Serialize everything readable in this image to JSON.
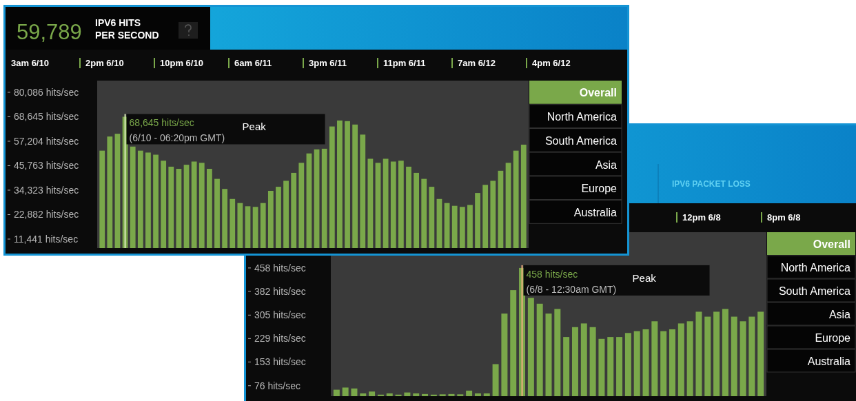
{
  "chart_data": [
    {
      "type": "bar",
      "title": "IPV6 HITS PER SECOND",
      "categories": [
        null,
        null,
        null,
        null,
        null,
        null,
        null,
        null,
        null,
        null,
        null,
        null,
        null,
        null,
        null,
        null,
        null,
        null,
        null,
        null,
        null,
        null,
        null,
        null,
        null,
        null,
        null,
        null,
        null,
        null,
        null,
        null,
        null,
        null,
        null,
        null,
        null,
        null,
        null,
        null,
        null,
        null,
        null,
        null,
        null,
        null,
        null,
        null,
        null,
        null,
        null,
        null,
        null,
        null,
        null,
        null
      ],
      "values": [
        52800,
        59400,
        60700,
        68645,
        54700,
        52800,
        51900,
        50900,
        48100,
        45300,
        44300,
        46200,
        47700,
        47100,
        44300,
        39600,
        34900,
        30200,
        28300,
        26800,
        26500,
        28300,
        34000,
        35900,
        38700,
        42400,
        47100,
        51500,
        53400,
        53700,
        64100,
        66900,
        66600,
        65000,
        60300,
        49000,
        47100,
        49000,
        47700,
        48100,
        45300,
        42400,
        39600,
        35900,
        30200,
        28300,
        27000,
        26500,
        27400,
        33000,
        36800,
        38700,
        43400,
        47100,
        52800,
        55600
      ],
      "color": "#7aa84a",
      "ylim": [
        7250,
        85550
      ],
      "yticks": [
        {
          "value": 80086,
          "label": "80,086 hits/sec"
        },
        {
          "value": 68645,
          "label": "68,645 hits/sec"
        },
        {
          "value": 57204,
          "label": "57,204 hits/sec"
        },
        {
          "value": 45763,
          "label": "45,763 hits/sec"
        },
        {
          "value": 34323,
          "label": "34,323 hits/sec"
        },
        {
          "value": 22882,
          "label": "22,882 hits/sec"
        },
        {
          "value": 11441,
          "label": "11,441 hits/sec"
        }
      ],
      "annotations": [
        "59,789",
        "3am 6/10",
        "2pm 6/10",
        "10pm 6/10",
        "6am 6/11",
        "3pm 6/11",
        "11pm 6/11",
        "7am 6/12",
        "4pm 6/12",
        "68,645 hits/sec",
        "(6/10 - 06:20pm GMT)",
        "Peak",
        "Overall",
        "North America",
        "South America",
        "Asia",
        "Europe",
        "Australia"
      ]
    },
    {
      "type": "bar",
      "categories": [
        null,
        null,
        null,
        null,
        null,
        null,
        null,
        null,
        null,
        null,
        null,
        null,
        null,
        null,
        null,
        null,
        null,
        null,
        null,
        null,
        null,
        null,
        null,
        null,
        null,
        null,
        null,
        null,
        null,
        null,
        null,
        null,
        null,
        null,
        null,
        null,
        null,
        null,
        null,
        null,
        null,
        null,
        null,
        null,
        null,
        null,
        null,
        null,
        null
      ],
      "values": [
        63,
        70,
        67,
        51,
        57,
        47,
        51,
        47,
        54,
        51,
        49,
        47,
        48,
        49,
        48,
        60,
        51,
        51,
        146,
        310,
        386,
        458,
        361,
        342,
        310,
        325,
        234,
        266,
        278,
        266,
        228,
        234,
        234,
        247,
        253,
        259,
        285,
        253,
        259,
        278,
        285,
        316,
        300,
        316,
        325,
        300,
        285,
        300,
        316
      ],
      "color": "#7aa84a",
      "ylim": [
        42,
        574
      ],
      "yticks": [
        {
          "value": 458,
          "label": "458 hits/sec"
        },
        {
          "value": 382,
          "label": "382 hits/sec"
        },
        {
          "value": 305,
          "label": "305 hits/sec"
        },
        {
          "value": 229,
          "label": "229 hits/sec"
        },
        {
          "value": 153,
          "label": "153 hits/sec"
        },
        {
          "value": 76,
          "label": "76 hits/sec"
        }
      ],
      "annotations": [
        "IPV6 PACKET LOSS",
        "12pm 6/8",
        "8pm 6/8",
        "458 hits/sec",
        "(6/8 - 12:30am GMT)",
        "Peak",
        "Overall",
        "North America",
        "South America",
        "Asia",
        "Europe",
        "Australia"
      ]
    }
  ]
}
